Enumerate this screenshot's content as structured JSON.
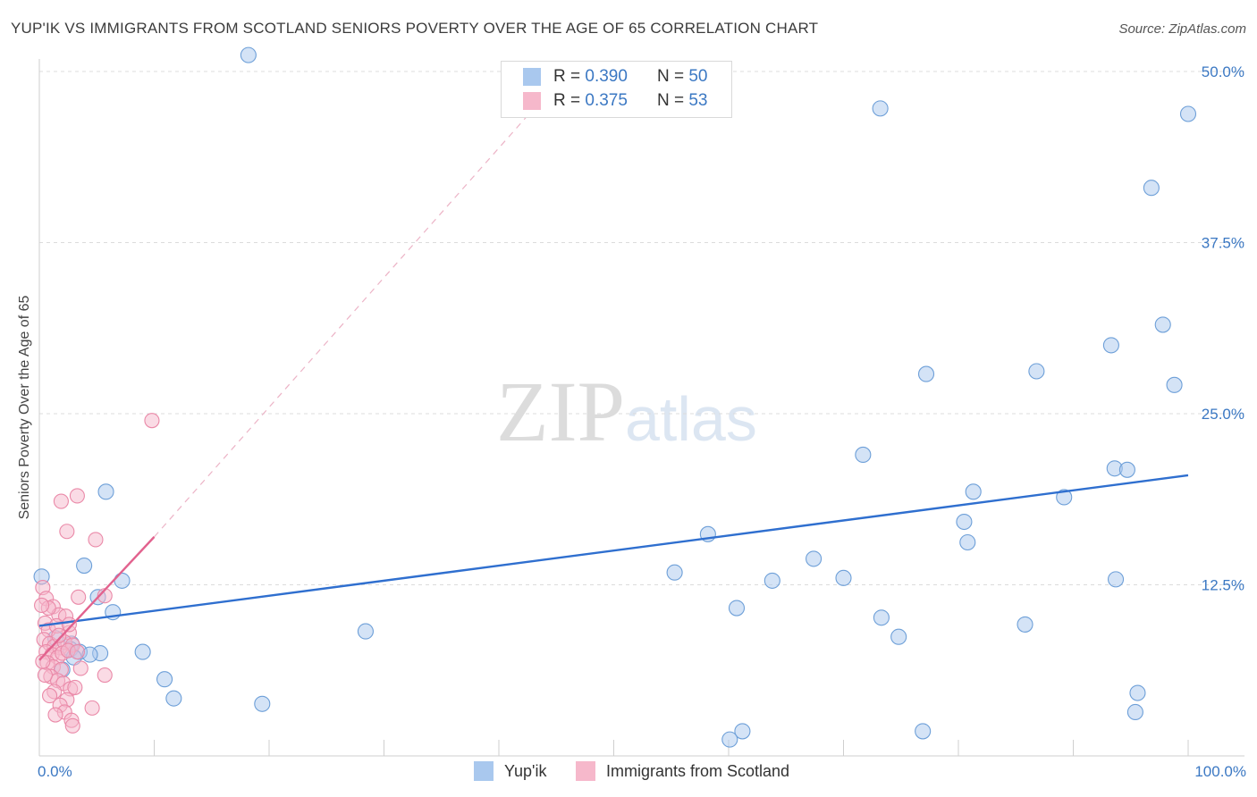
{
  "title": "YUP'IK VS IMMIGRANTS FROM SCOTLAND SENIORS POVERTY OVER THE AGE OF 65 CORRELATION CHART",
  "source": "Source: ZipAtlas.com",
  "watermark": {
    "zip": "ZIP",
    "atlas": "atlas"
  },
  "stats_box": {
    "rows": [
      {
        "r_label": "R =",
        "r_value": "0.390",
        "n_label": "N =",
        "n_value": "50",
        "color": "#a9c8ee"
      },
      {
        "r_label": "R =",
        "r_value": "0.375",
        "n_label": "N =",
        "n_value": "53",
        "color": "#f6b8cb"
      }
    ]
  },
  "legend": [
    {
      "label": "Yup'ik",
      "color": "#a9c8ee"
    },
    {
      "label": "Immigrants from Scotland",
      "color": "#f6b8cb"
    }
  ],
  "chart_data": {
    "type": "scatter",
    "title": "YUP'IK VS IMMIGRANTS FROM SCOTLAND SENIORS POVERTY OVER THE AGE OF 65 CORRELATION CHART",
    "xlabel": "",
    "ylabel": "Seniors Poverty Over the Age of 65",
    "xlim": [
      0,
      100
    ],
    "ylim": [
      0,
      50
    ],
    "x_tick_labels": [
      {
        "value": 0,
        "label": "0.0%"
      },
      {
        "value": 100,
        "label": "100.0%"
      }
    ],
    "y_tick_labels": [
      {
        "value": 12.5,
        "label": "12.5%"
      },
      {
        "value": 25,
        "label": "25.0%"
      },
      {
        "value": 37.5,
        "label": "37.5%"
      },
      {
        "value": 50,
        "label": "50.0%"
      }
    ],
    "x_minor_ticks": [
      0,
      10,
      20,
      30,
      40,
      50,
      60,
      70,
      80,
      90,
      100
    ],
    "grid": true,
    "series": [
      {
        "name": "Yup'ik",
        "color": "#a9c8ee",
        "stroke": "#6d9fd8",
        "trend": {
          "x": [
            0,
            100
          ],
          "y": [
            9.5,
            20.5
          ],
          "color": "#2f6fcf"
        },
        "points": [
          [
            18.2,
            51.2
          ],
          [
            73.2,
            47.3
          ],
          [
            100,
            46.9
          ],
          [
            96.8,
            41.5
          ],
          [
            97.8,
            31.5
          ],
          [
            93.3,
            30.0
          ],
          [
            77.2,
            27.9
          ],
          [
            86.8,
            28.1
          ],
          [
            98.8,
            27.1
          ],
          [
            71.7,
            22.0
          ],
          [
            93.6,
            21.0
          ],
          [
            94.7,
            20.9
          ],
          [
            81.3,
            19.3
          ],
          [
            89.2,
            18.9
          ],
          [
            80.5,
            17.1
          ],
          [
            80.8,
            15.6
          ],
          [
            58.2,
            16.2
          ],
          [
            67.4,
            14.4
          ],
          [
            55.3,
            13.4
          ],
          [
            63.8,
            12.8
          ],
          [
            70.0,
            13.0
          ],
          [
            93.7,
            12.9
          ],
          [
            0.2,
            13.1
          ],
          [
            5.8,
            19.3
          ],
          [
            3.9,
            13.9
          ],
          [
            7.2,
            12.8
          ],
          [
            5.1,
            11.6
          ],
          [
            6.4,
            10.5
          ],
          [
            2.8,
            8.2
          ],
          [
            2.7,
            7.8
          ],
          [
            3.5,
            7.6
          ],
          [
            5.3,
            7.5
          ],
          [
            9.0,
            7.6
          ],
          [
            28.4,
            9.1
          ],
          [
            60.7,
            10.8
          ],
          [
            73.3,
            10.1
          ],
          [
            74.8,
            8.7
          ],
          [
            85.8,
            9.6
          ],
          [
            10.9,
            5.6
          ],
          [
            11.7,
            4.2
          ],
          [
            19.4,
            3.8
          ],
          [
            76.9,
            1.8
          ],
          [
            61.2,
            1.8
          ],
          [
            60.1,
            1.2
          ],
          [
            95.6,
            4.6
          ],
          [
            95.4,
            3.2
          ],
          [
            1.4,
            8.6
          ],
          [
            2.0,
            6.3
          ],
          [
            3.0,
            7.2
          ],
          [
            4.4,
            7.4
          ]
        ]
      },
      {
        "name": "Immigrants from Scotland",
        "color": "#f6b8cb",
        "stroke": "#ea89a8",
        "trend": {
          "x": [
            0,
            10
          ],
          "y": [
            7.0,
            16.0
          ],
          "color": "#e2628e",
          "dashed_extension_to": [
            44,
            48.2
          ]
        },
        "points": [
          [
            9.8,
            24.5
          ],
          [
            3.3,
            19.0
          ],
          [
            1.9,
            18.6
          ],
          [
            2.4,
            16.4
          ],
          [
            4.9,
            15.8
          ],
          [
            0.3,
            12.3
          ],
          [
            0.6,
            11.5
          ],
          [
            3.4,
            11.6
          ],
          [
            5.7,
            11.7
          ],
          [
            1.2,
            10.9
          ],
          [
            1.7,
            10.3
          ],
          [
            2.3,
            10.2
          ],
          [
            0.5,
            9.7
          ],
          [
            0.8,
            9.2
          ],
          [
            1.5,
            9.5
          ],
          [
            2.6,
            9.0
          ],
          [
            0.4,
            8.5
          ],
          [
            0.9,
            8.2
          ],
          [
            1.3,
            8.0
          ],
          [
            1.8,
            7.9
          ],
          [
            2.2,
            8.3
          ],
          [
            2.9,
            8.1
          ],
          [
            0.6,
            7.6
          ],
          [
            1.1,
            7.4
          ],
          [
            1.6,
            7.2
          ],
          [
            2.0,
            7.5
          ],
          [
            2.5,
            7.7
          ],
          [
            3.3,
            7.6
          ],
          [
            0.7,
            6.8
          ],
          [
            1.2,
            6.5
          ],
          [
            1.9,
            6.3
          ],
          [
            3.6,
            6.4
          ],
          [
            5.7,
            5.9
          ],
          [
            1.0,
            5.8
          ],
          [
            1.6,
            5.5
          ],
          [
            2.1,
            5.3
          ],
          [
            2.7,
            4.9
          ],
          [
            3.1,
            5.0
          ],
          [
            1.3,
            4.7
          ],
          [
            0.9,
            4.4
          ],
          [
            2.4,
            4.1
          ],
          [
            4.6,
            3.5
          ],
          [
            1.8,
            3.7
          ],
          [
            2.2,
            3.2
          ],
          [
            2.8,
            2.6
          ],
          [
            2.9,
            2.2
          ],
          [
            1.4,
            3.0
          ],
          [
            0.5,
            5.9
          ],
          [
            0.3,
            6.9
          ],
          [
            1.7,
            8.8
          ],
          [
            0.8,
            10.8
          ],
          [
            2.6,
            9.6
          ],
          [
            0.2,
            11.0
          ]
        ]
      }
    ]
  }
}
